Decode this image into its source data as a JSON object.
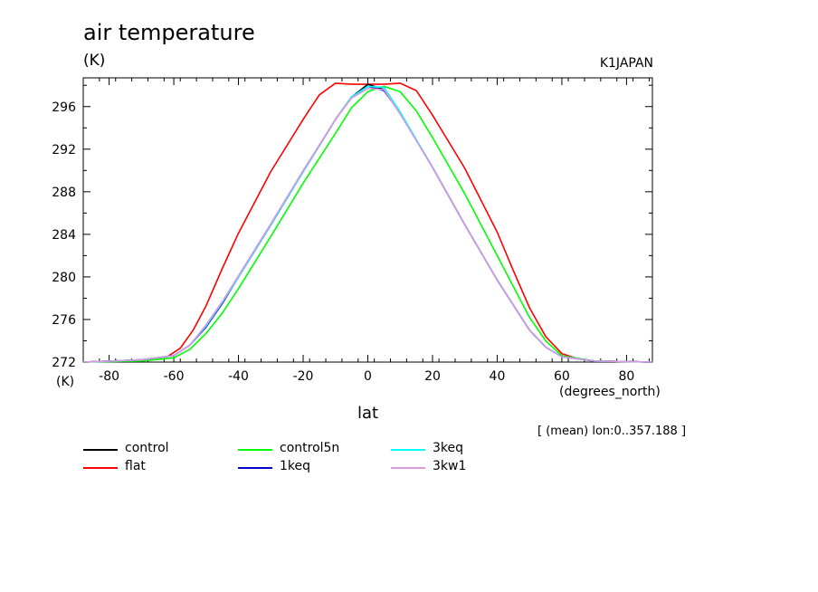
{
  "chart_data": {
    "type": "line",
    "title": "air temperature",
    "yunit": "(K)",
    "yunit_bottom": "(K)",
    "source": "K1JAPAN",
    "xlabel": "lat",
    "xunit": "(degrees_north)",
    "subtitle": "[ (mean) lon:0..357.188 ]",
    "xlim": [
      -88,
      88
    ],
    "ylim": [
      272,
      298.7
    ],
    "xticks": [
      -80,
      -60,
      -40,
      -20,
      0,
      20,
      40,
      60,
      80
    ],
    "yticks": [
      272,
      276,
      280,
      284,
      288,
      292,
      296
    ],
    "grid": false,
    "legend_position": "bottom",
    "series": [
      {
        "name": "control",
        "color": "#000000",
        "x": [
          -88,
          -70,
          -60,
          -55,
          -50,
          -45,
          -40,
          -30,
          -20,
          -10,
          -5,
          0,
          5,
          10,
          20,
          30,
          40,
          50,
          55,
          60,
          70,
          88
        ],
        "y": [
          272.0,
          272.2,
          272.6,
          273.6,
          275.4,
          277.6,
          280.0,
          284.9,
          289.9,
          294.8,
          296.9,
          298.1,
          297.6,
          295.4,
          290.3,
          284.9,
          279.7,
          275.0,
          273.4,
          272.5,
          272.1,
          272.0
        ]
      },
      {
        "name": "flat",
        "color": "#ff0000",
        "x": [
          -88,
          -70,
          -62,
          -58,
          -54,
          -50,
          -45,
          -40,
          -30,
          -20,
          -15,
          -10,
          -5,
          0,
          5,
          10,
          15,
          20,
          30,
          40,
          45,
          50,
          55,
          60,
          65,
          70,
          88
        ],
        "y": [
          272.0,
          272.2,
          272.5,
          273.3,
          275.0,
          277.3,
          280.8,
          284.1,
          289.9,
          294.8,
          297.1,
          298.2,
          298.1,
          298.1,
          298.1,
          298.2,
          297.5,
          295.2,
          290.2,
          284.2,
          280.6,
          277.1,
          274.4,
          272.8,
          272.3,
          272.1,
          272.0
        ]
      },
      {
        "name": "control5n",
        "color": "#00ff00",
        "x": [
          -88,
          -70,
          -60,
          -55,
          -50,
          -45,
          -40,
          -30,
          -20,
          -10,
          -5,
          0,
          5,
          10,
          15,
          20,
          30,
          40,
          45,
          50,
          55,
          60,
          70,
          88
        ],
        "y": [
          272.0,
          272.1,
          272.4,
          273.2,
          274.7,
          276.6,
          278.9,
          283.8,
          288.8,
          293.5,
          295.9,
          297.4,
          297.9,
          297.4,
          295.6,
          293.1,
          287.8,
          282.0,
          279.1,
          276.2,
          274.0,
          272.6,
          272.1,
          272.0
        ]
      },
      {
        "name": "1keq",
        "color": "#0000cc",
        "x": [
          -88,
          -70,
          -60,
          -55,
          -50,
          -45,
          -40,
          -30,
          -20,
          -10,
          -5,
          0,
          5,
          10,
          20,
          30,
          40,
          50,
          55,
          60,
          70,
          88
        ],
        "y": [
          272.0,
          272.2,
          272.6,
          273.6,
          275.3,
          277.5,
          280.0,
          284.9,
          289.9,
          294.8,
          296.9,
          297.9,
          297.5,
          295.4,
          290.3,
          284.9,
          279.7,
          275.0,
          273.4,
          272.5,
          272.1,
          272.0
        ]
      },
      {
        "name": "3keq",
        "color": "#00ffff",
        "x": [
          -88,
          -70,
          -60,
          -55,
          -50,
          -45,
          -40,
          -30,
          -20,
          -10,
          -5,
          0,
          5,
          10,
          20,
          30,
          40,
          50,
          55,
          60,
          70,
          88
        ],
        "y": [
          272.0,
          272.2,
          272.6,
          273.6,
          275.4,
          277.6,
          280.0,
          284.9,
          289.9,
          294.8,
          296.9,
          297.9,
          297.8,
          295.5,
          290.3,
          284.9,
          279.7,
          275.0,
          273.4,
          272.5,
          272.1,
          272.0
        ]
      },
      {
        "name": "3kw1",
        "color": "#dd99dd",
        "x": [
          -88,
          -70,
          -60,
          -55,
          -50,
          -45,
          -40,
          -30,
          -20,
          -10,
          -5,
          0,
          5,
          10,
          20,
          30,
          40,
          50,
          55,
          60,
          70,
          88
        ],
        "y": [
          272.0,
          272.2,
          272.6,
          273.6,
          275.5,
          277.7,
          280.1,
          285.0,
          290.0,
          294.8,
          296.8,
          297.7,
          297.6,
          295.3,
          290.3,
          284.9,
          279.7,
          275.0,
          273.4,
          272.5,
          272.1,
          272.0
        ]
      }
    ]
  }
}
